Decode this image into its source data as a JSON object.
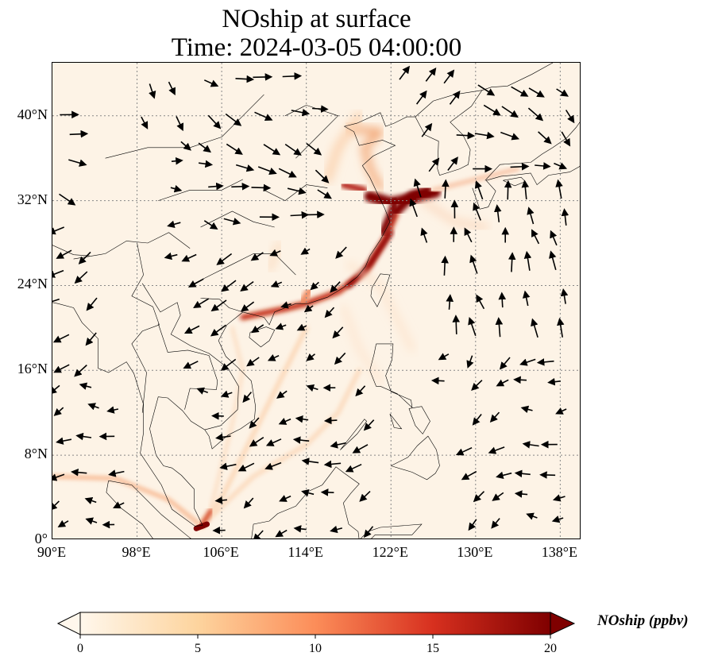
{
  "title": "NOship at surface",
  "subtitle": "Time: 2024-03-05 04:00:00",
  "map": {
    "lon_range": [
      90,
      140
    ],
    "lat_range": [
      0,
      45
    ],
    "lat_ticks": [
      {
        "value": 40,
        "label": "40°N"
      },
      {
        "value": 32,
        "label": "32°N"
      },
      {
        "value": 24,
        "label": "24°N"
      },
      {
        "value": 16,
        "label": "16°N"
      },
      {
        "value": 8,
        "label": "8°N"
      },
      {
        "value": 0,
        "label": "0°"
      }
    ],
    "lon_ticks": [
      {
        "value": 90,
        "label": "90°E"
      },
      {
        "value": 98,
        "label": "98°E"
      },
      {
        "value": 106,
        "label": "106°E"
      },
      {
        "value": 114,
        "label": "114°E"
      },
      {
        "value": 122,
        "label": "122°E"
      },
      {
        "value": 130,
        "label": "130°E"
      },
      {
        "value": 138,
        "label": "138°E"
      }
    ],
    "gridlines": true,
    "wind_vectors_shown": true
  },
  "colorbar": {
    "label": "NOship (ppbv)",
    "min": 0,
    "max": 20,
    "ticks": [
      "0",
      "5",
      "10",
      "15",
      "20"
    ],
    "extend": "both",
    "colormap": "OrRd",
    "colors": [
      "#fff7ec",
      "#fdd49e",
      "#fc8d59",
      "#d7301f",
      "#7f0000"
    ]
  }
}
